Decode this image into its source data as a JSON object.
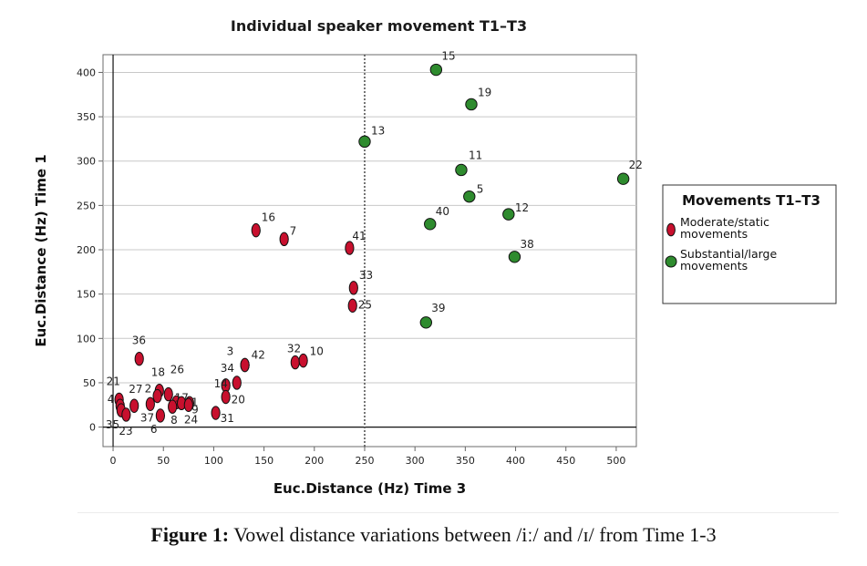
{
  "chart_data": {
    "type": "scatter",
    "title": "Individual speaker movement T1–T3",
    "xlabel": "Euc.Distance (Hz) Time 3",
    "ylabel": "Euc.Distance (Hz) Time 1",
    "xlim": [
      -10,
      520
    ],
    "ylim": [
      -22,
      420
    ],
    "xticks": [
      0,
      50,
      100,
      150,
      200,
      250,
      300,
      350,
      400,
      450,
      500
    ],
    "yticks": [
      0,
      50,
      100,
      150,
      200,
      250,
      300,
      350,
      400
    ],
    "grid": "horizontal",
    "reference_lines": {
      "x_zero": true,
      "y_zero": true,
      "x_dashed": 250
    },
    "legend": {
      "title": "Movements T1–T3",
      "placement": "right",
      "entries": [
        "Moderate/static movements",
        "Substantial/large movements"
      ]
    },
    "colors": {
      "moderate": "#c8102e",
      "substantial": "#2e8b2e"
    },
    "series": [
      {
        "name": "Moderate/static movements",
        "points": [
          {
            "label": "16",
            "x": 142,
            "y": 222
          },
          {
            "label": "7",
            "x": 170,
            "y": 212
          },
          {
            "label": "41",
            "x": 235,
            "y": 202
          },
          {
            "label": "33",
            "x": 239,
            "y": 157
          },
          {
            "label": "25",
            "x": 238,
            "y": 137
          },
          {
            "label": "36",
            "x": 26,
            "y": 77
          },
          {
            "label": "3",
            "x": 131,
            "y": 70
          },
          {
            "label": "42",
            "x": 131,
            "y": 70
          },
          {
            "label": "32",
            "x": 181,
            "y": 73
          },
          {
            "label": "10",
            "x": 189,
            "y": 75
          },
          {
            "label": "34",
            "x": 123,
            "y": 50
          },
          {
            "label": "14",
            "x": 112,
            "y": 47
          },
          {
            "label": "20",
            "x": 112,
            "y": 34
          },
          {
            "label": "18",
            "x": 46,
            "y": 41
          },
          {
            "label": "26",
            "x": 55,
            "y": 37
          },
          {
            "label": "21",
            "x": 6,
            "y": 31
          },
          {
            "label": "2",
            "x": 44,
            "y": 35
          },
          {
            "label": "27",
            "x": 21,
            "y": 24
          },
          {
            "label": "17",
            "x": 63,
            "y": 28
          },
          {
            "label": "1",
            "x": 76,
            "y": 27
          },
          {
            "label": "4",
            "x": 7,
            "y": 24
          },
          {
            "label": "37",
            "x": 37,
            "y": 26
          },
          {
            "label": "35",
            "x": 8,
            "y": 19
          },
          {
            "label": "23",
            "x": 13,
            "y": 14
          },
          {
            "label": "6",
            "x": 47,
            "y": 13
          },
          {
            "label": "8",
            "x": 59,
            "y": 23
          },
          {
            "label": "9",
            "x": 68,
            "y": 27
          },
          {
            "label": "24",
            "x": 75,
            "y": 25
          },
          {
            "label": "31",
            "x": 102,
            "y": 16
          }
        ]
      },
      {
        "name": "Substantial/large movements",
        "points": [
          {
            "label": "15",
            "x": 321,
            "y": 403
          },
          {
            "label": "19",
            "x": 356,
            "y": 364
          },
          {
            "label": "13",
            "x": 250,
            "y": 322
          },
          {
            "label": "11",
            "x": 346,
            "y": 290
          },
          {
            "label": "22",
            "x": 507,
            "y": 280
          },
          {
            "label": "5",
            "x": 354,
            "y": 260
          },
          {
            "label": "12",
            "x": 393,
            "y": 240
          },
          {
            "label": "40",
            "x": 315,
            "y": 229
          },
          {
            "label": "38",
            "x": 399,
            "y": 192
          },
          {
            "label": "39",
            "x": 311,
            "y": 118
          }
        ]
      }
    ]
  },
  "caption": {
    "prefix": "Figure 1:",
    "text": " Vowel distance variations between /iː/ and /ɪ/ from Time 1-3"
  }
}
